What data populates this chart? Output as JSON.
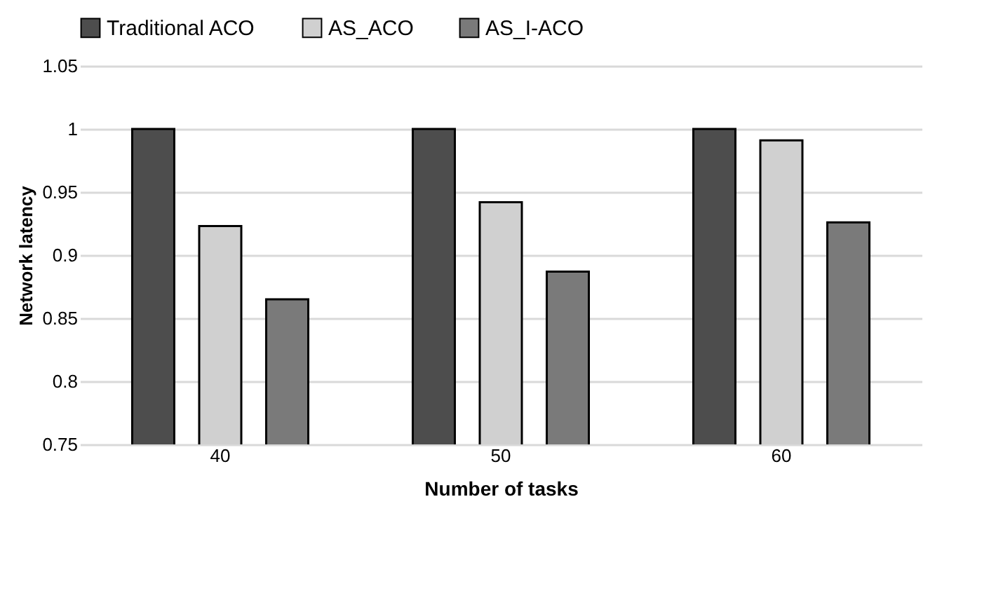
{
  "chart_data": {
    "type": "bar",
    "xlabel": "Number of tasks",
    "ylabel": "Network latency",
    "categories": [
      "40",
      "50",
      "60"
    ],
    "series": [
      {
        "name": "Traditional ACO",
        "color": "#4d4d4d",
        "values": [
          1,
          1,
          1
        ]
      },
      {
        "name": "AS_ACO",
        "color": "#d0d0d0",
        "values": [
          0.923,
          0.942,
          0.991
        ]
      },
      {
        "name": "AS_I-ACO",
        "color": "#7a7a7a",
        "values": [
          0.865,
          0.887,
          0.926
        ]
      }
    ],
    "ylim": [
      0.75,
      1.05
    ],
    "yticks": [
      0.75,
      0.8,
      0.85,
      0.9,
      0.95,
      1,
      1.05
    ],
    "grid": "y",
    "legend": "top"
  }
}
